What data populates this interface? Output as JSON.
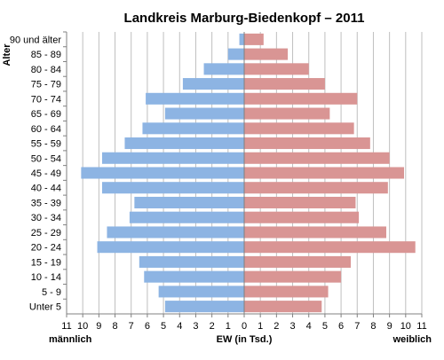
{
  "chart_data": {
    "type": "bar",
    "orientation": "horizontal",
    "layout": "population-pyramid",
    "title": "Landkreis Marburg-Biedenkopf – 2011",
    "ylabel": "Alter",
    "xlabel": "EW (in Tsd.)",
    "left_label": "männlich",
    "right_label": "weiblich",
    "xlim": [
      -11,
      11
    ],
    "x_ticks": [
      -11,
      -10,
      -9,
      -8,
      -7,
      -6,
      -5,
      -4,
      -3,
      -2,
      -1,
      0,
      1,
      2,
      3,
      4,
      5,
      6,
      7,
      8,
      9,
      10,
      11
    ],
    "x_tick_labels": [
      "11",
      "10",
      "9",
      "8",
      "7",
      "6",
      "5",
      "4",
      "3",
      "2",
      "1",
      "0",
      "1",
      "2",
      "3",
      "4",
      "5",
      "6",
      "7",
      "8",
      "9",
      "10",
      "11"
    ],
    "grid": true,
    "categories": [
      "90 und älter",
      "85 - 89",
      "80 - 84",
      "75 - 79",
      "70 - 74",
      "65 - 69",
      "60 - 64",
      "55 - 59",
      "50 - 54",
      "45 - 49",
      "40 - 44",
      "35 - 39",
      "30 - 34",
      "25 - 29",
      "20 - 24",
      "15 - 19",
      "10 - 14",
      "5 - 9",
      "Unter 5"
    ],
    "series": [
      {
        "key": "male",
        "color": "#8db4e3",
        "values": [
          0.3,
          1.0,
          2.5,
          3.8,
          6.1,
          4.9,
          6.3,
          7.4,
          8.8,
          10.1,
          8.8,
          6.8,
          7.1,
          8.5,
          9.1,
          6.5,
          6.2,
          5.3,
          4.9
        ]
      },
      {
        "key": "female",
        "color": "#d99594",
        "values": [
          1.2,
          2.7,
          4.0,
          5.0,
          7.0,
          5.3,
          6.8,
          7.8,
          9.0,
          9.9,
          8.9,
          6.9,
          7.1,
          8.8,
          10.6,
          6.6,
          6.0,
          5.2,
          4.8
        ]
      }
    ]
  }
}
